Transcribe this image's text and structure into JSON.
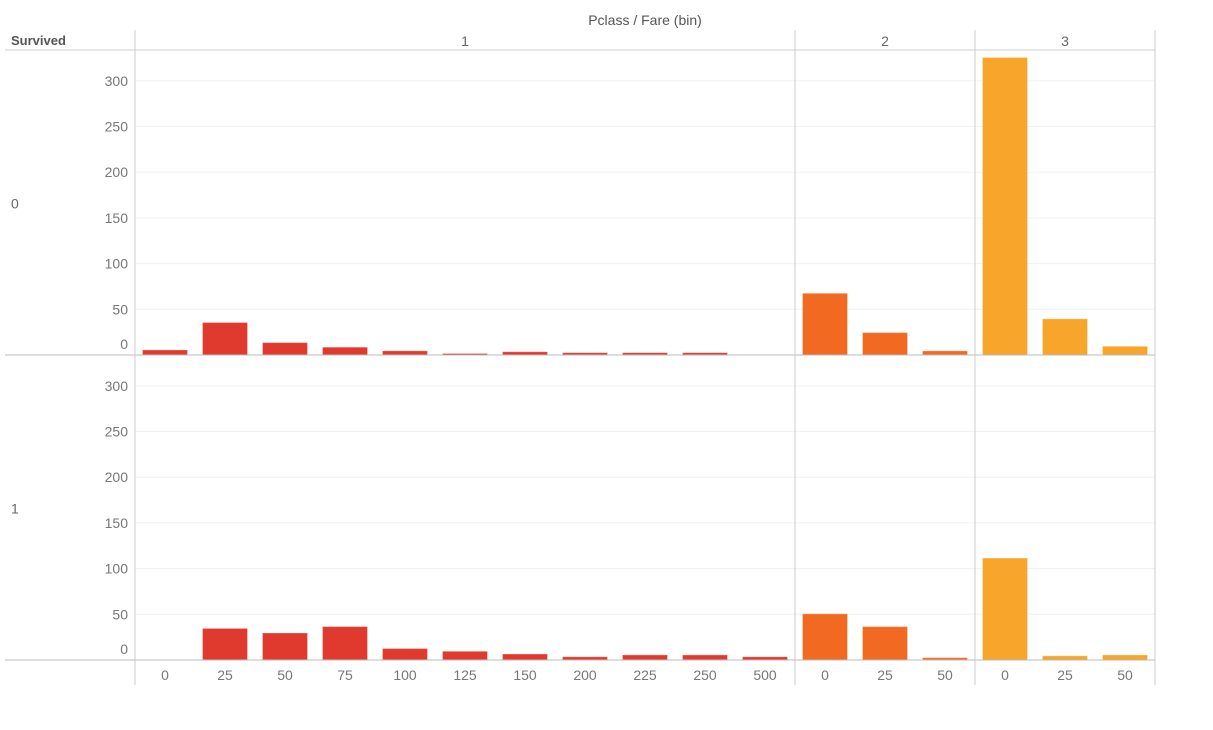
{
  "chart_data": {
    "type": "bar",
    "title": "Pclass / Fare (bin)",
    "row_header": "Survived",
    "column_field": "Pclass",
    "row_field": "Survived",
    "ylim": [
      0,
      330
    ],
    "y_ticks": [
      0,
      50,
      100,
      150,
      200,
      250,
      300
    ],
    "grid": true,
    "colors": {
      "1": "#e03a2f",
      "2": "#f26a21",
      "3": "#f7a52b"
    },
    "columns": [
      {
        "pclass": "1",
        "categories": [
          "0",
          "25",
          "50",
          "75",
          "100",
          "125",
          "150",
          "200",
          "225",
          "250",
          "500"
        ]
      },
      {
        "pclass": "2",
        "categories": [
          "0",
          "25",
          "50"
        ]
      },
      {
        "pclass": "3",
        "categories": [
          "0",
          "25",
          "50"
        ]
      }
    ],
    "rows": [
      {
        "survived": "0",
        "values": {
          "1": [
            5,
            35,
            13,
            8,
            4,
            1,
            3,
            2,
            2,
            2,
            0
          ],
          "2": [
            67,
            24,
            4
          ],
          "3": [
            325,
            39,
            9
          ]
        }
      },
      {
        "survived": "1",
        "values": {
          "1": [
            0,
            34,
            29,
            36,
            12,
            9,
            6,
            3,
            5,
            5,
            3
          ],
          "2": [
            50,
            36,
            2
          ],
          "3": [
            111,
            4,
            5
          ]
        }
      }
    ]
  }
}
